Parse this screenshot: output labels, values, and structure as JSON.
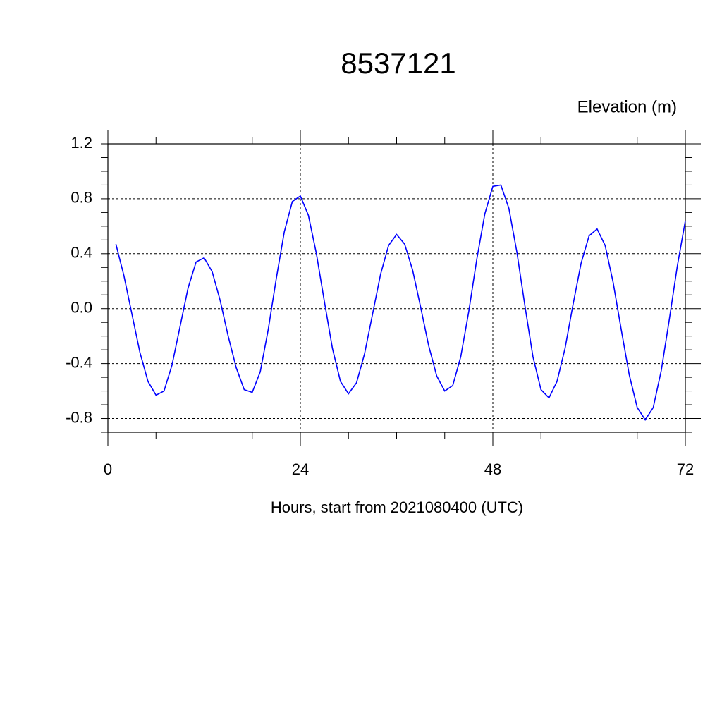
{
  "chart_data": {
    "type": "line",
    "title": "8537121",
    "y_label": "Elevation (m)",
    "x_label": "Hours, start from 2021080400 (UTC)",
    "x": [
      1,
      2,
      3,
      4,
      5,
      6,
      7,
      8,
      9,
      10,
      11,
      12,
      13,
      14,
      15,
      16,
      17,
      18,
      19,
      20,
      21,
      22,
      23,
      24,
      25,
      26,
      27,
      28,
      29,
      30,
      31,
      32,
      33,
      34,
      35,
      36,
      37,
      38,
      39,
      40,
      41,
      42,
      43,
      44,
      45,
      46,
      47,
      48,
      49,
      50,
      51,
      52,
      53,
      54,
      55,
      56,
      57,
      58,
      59,
      60,
      61,
      62,
      63,
      64,
      65,
      66,
      67,
      68,
      69,
      70,
      71,
      72
    ],
    "series": [
      {
        "color": "#0000ff",
        "values": [
          0.47,
          0.24,
          -0.04,
          -0.32,
          -0.53,
          -0.63,
          -0.6,
          -0.41,
          -0.13,
          0.15,
          0.34,
          0.37,
          0.27,
          0.06,
          -0.2,
          -0.43,
          -0.59,
          -0.61,
          -0.46,
          -0.15,
          0.22,
          0.56,
          0.78,
          0.82,
          0.68,
          0.4,
          0.05,
          -0.29,
          -0.53,
          -0.62,
          -0.54,
          -0.33,
          -0.04,
          0.25,
          0.46,
          0.54,
          0.47,
          0.28,
          0.01,
          -0.27,
          -0.49,
          -0.6,
          -0.56,
          -0.35,
          -0.02,
          0.36,
          0.69,
          0.89,
          0.9,
          0.73,
          0.41,
          0.02,
          -0.35,
          -0.59,
          -0.65,
          -0.53,
          -0.29,
          0.03,
          0.33,
          0.53,
          0.58,
          0.46,
          0.19,
          -0.15,
          -0.48,
          -0.72,
          -0.81,
          -0.72,
          -0.45,
          -0.08,
          0.31,
          0.64
        ]
      }
    ],
    "xlim": [
      0,
      72
    ],
    "xticks": [
      0,
      24,
      48,
      72
    ],
    "xminorticks": [
      6,
      12,
      18,
      30,
      36,
      42,
      54,
      60,
      66
    ],
    "ylim": [
      -0.9,
      1.2
    ],
    "yticks": [
      1.2,
      0.8,
      0.4,
      {
        "value": 0,
        "label": "0.0"
      },
      -0.4,
      -0.8
    ],
    "yminorticks": [
      -0.9,
      -0.7,
      -0.6,
      -0.5,
      -0.3,
      -0.2,
      -0.1,
      0.1,
      0.2,
      0.3,
      0.5,
      0.6,
      0.7,
      0.9,
      1.0,
      1.1
    ],
    "grid": true
  }
}
